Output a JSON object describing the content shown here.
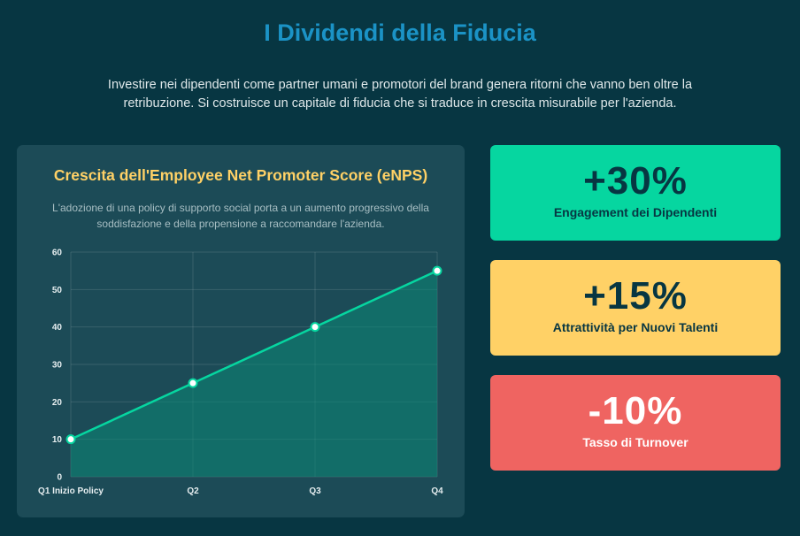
{
  "header": {
    "title": "I Dividendi della Fiducia",
    "intro": "Investire nei dipendenti come partner umani e promotori del brand genera ritorni che vanno ben oltre la retribuzione. Si costruisce un capitale di fiducia che si traduce in crescita misurabile per l'azienda."
  },
  "chart_card": {
    "title": "Crescita dell'Employee Net Promoter Score (eNPS)",
    "subtitle": "L'adozione di una policy di supporto social porta a un aumento progressivo della soddisfazione e della propensione a raccomandare l'azienda."
  },
  "chart_data": {
    "type": "area",
    "categories": [
      "Q1 Inizio Policy",
      "Q2",
      "Q3",
      "Q4"
    ],
    "series": [
      {
        "values": [
          10,
          25,
          40,
          55
        ]
      }
    ],
    "ylim": [
      0,
      60
    ],
    "yticks": [
      0,
      10,
      20,
      30,
      40,
      50,
      60
    ],
    "grid": true,
    "line_color": "#06d6a0",
    "fill_color": "#0b8a76",
    "point_color": "#ffffff"
  },
  "stats": [
    {
      "value": "+30%",
      "label": "Engagement dei Dipendenti",
      "color": "#06d6a0"
    },
    {
      "value": "+15%",
      "label": "Attrattività per Nuovi Talenti",
      "color": "#ffd166"
    },
    {
      "value": "-10%",
      "label": "Tasso di Turnover",
      "color": "#ef6461"
    }
  ]
}
